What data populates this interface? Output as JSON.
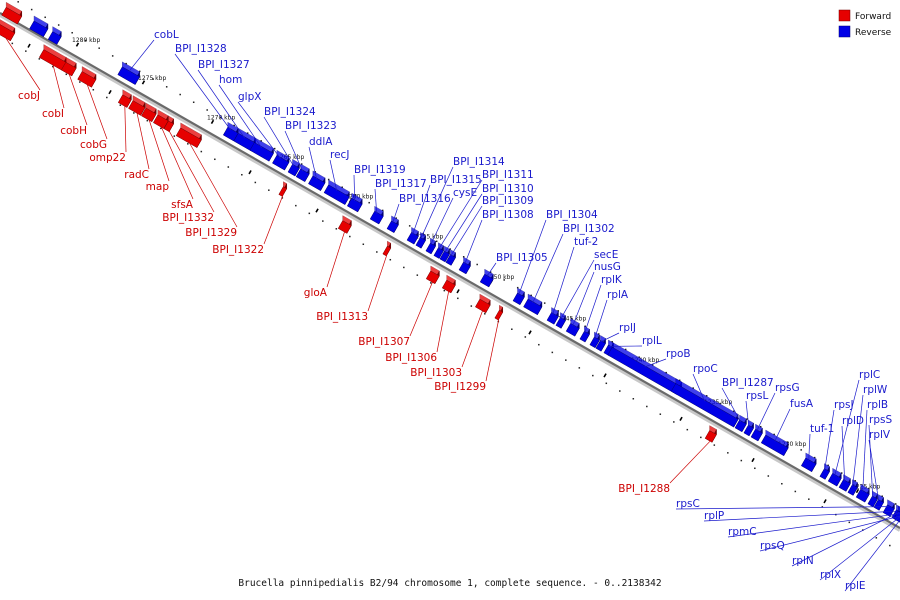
{
  "caption": "Brucella pinnipedialis B2/94 chromosome 1, complete sequence. - 0..2138342",
  "legend": [
    {
      "name": "Forward",
      "color": "#e60000"
    },
    {
      "name": "Reverse",
      "color": "#0000e6"
    }
  ],
  "colors": {
    "forward": "#e60000",
    "reverse": "#0000e6",
    "fwd_label": "#cc0000",
    "rev_label": "#1a1acc"
  },
  "ticks": [
    "1280 kbp",
    "1275 kbp",
    "1270 kbp",
    "1265 kbp",
    "1260 kbp",
    "1255 kbp",
    "1250 kbp",
    "1245 kbp",
    "1240 kbp",
    "1235 kbp",
    "1230 kbp",
    "1225 kbp"
  ],
  "genes": [
    {
      "name": "cobL",
      "strand": "reverse"
    },
    {
      "name": "BPI_I1328",
      "strand": "reverse"
    },
    {
      "name": "BPI_I1327",
      "strand": "reverse"
    },
    {
      "name": "hom",
      "strand": "reverse"
    },
    {
      "name": "glpX",
      "strand": "reverse"
    },
    {
      "name": "BPI_I1324",
      "strand": "reverse"
    },
    {
      "name": "BPI_I1323",
      "strand": "reverse"
    },
    {
      "name": "ddlA",
      "strand": "reverse"
    },
    {
      "name": "recJ",
      "strand": "reverse"
    },
    {
      "name": "BPI_I1319",
      "strand": "reverse"
    },
    {
      "name": "BPI_I1317",
      "strand": "reverse"
    },
    {
      "name": "BPI_I1316",
      "strand": "reverse"
    },
    {
      "name": "BPI_I1315",
      "strand": "reverse"
    },
    {
      "name": "BPI_I1314",
      "strand": "reverse"
    },
    {
      "name": "cysE",
      "strand": "reverse"
    },
    {
      "name": "BPI_I1311",
      "strand": "reverse"
    },
    {
      "name": "BPI_I1310",
      "strand": "reverse"
    },
    {
      "name": "BPI_I1309",
      "strand": "reverse"
    },
    {
      "name": "BPI_I1308",
      "strand": "reverse"
    },
    {
      "name": "BPI_I1305",
      "strand": "reverse"
    },
    {
      "name": "BPI_I1304",
      "strand": "reverse"
    },
    {
      "name": "BPI_I1302",
      "strand": "reverse"
    },
    {
      "name": "tuf-2",
      "strand": "reverse"
    },
    {
      "name": "secE",
      "strand": "reverse"
    },
    {
      "name": "nusG",
      "strand": "reverse"
    },
    {
      "name": "rplK",
      "strand": "reverse"
    },
    {
      "name": "rplA",
      "strand": "reverse"
    },
    {
      "name": "rplJ",
      "strand": "reverse"
    },
    {
      "name": "rplL",
      "strand": "reverse"
    },
    {
      "name": "rpoB",
      "strand": "reverse"
    },
    {
      "name": "rpoC",
      "strand": "reverse"
    },
    {
      "name": "BPI_I1287",
      "strand": "reverse"
    },
    {
      "name": "rpsL",
      "strand": "reverse"
    },
    {
      "name": "rpsG",
      "strand": "reverse"
    },
    {
      "name": "fusA",
      "strand": "reverse"
    },
    {
      "name": "tuf-1",
      "strand": "reverse"
    },
    {
      "name": "rpsJ",
      "strand": "reverse"
    },
    {
      "name": "rplC",
      "strand": "reverse"
    },
    {
      "name": "rplD",
      "strand": "reverse"
    },
    {
      "name": "rplW",
      "strand": "reverse"
    },
    {
      "name": "rplB",
      "strand": "reverse"
    },
    {
      "name": "rpsS",
      "strand": "reverse"
    },
    {
      "name": "rplV",
      "strand": "reverse"
    },
    {
      "name": "rpsC",
      "strand": "reverse"
    },
    {
      "name": "rplP",
      "strand": "reverse"
    },
    {
      "name": "rpmC",
      "strand": "reverse"
    },
    {
      "name": "rpsQ",
      "strand": "reverse"
    },
    {
      "name": "rplN",
      "strand": "reverse"
    },
    {
      "name": "rplX",
      "strand": "reverse"
    },
    {
      "name": "rplE",
      "strand": "reverse"
    },
    {
      "name": "cobJ",
      "strand": "forward"
    },
    {
      "name": "cobI",
      "strand": "forward"
    },
    {
      "name": "cobH",
      "strand": "forward"
    },
    {
      "name": "cobG",
      "strand": "forward"
    },
    {
      "name": "omp22",
      "strand": "forward"
    },
    {
      "name": "radC",
      "strand": "forward"
    },
    {
      "name": "map",
      "strand": "forward"
    },
    {
      "name": "sfsA",
      "strand": "forward"
    },
    {
      "name": "BPI_I1332",
      "strand": "forward"
    },
    {
      "name": "BPI_I1329",
      "strand": "forward"
    },
    {
      "name": "BPI_I1322",
      "strand": "forward"
    },
    {
      "name": "gloA",
      "strand": "forward"
    },
    {
      "name": "BPI_I1313",
      "strand": "forward"
    },
    {
      "name": "BPI_I1307",
      "strand": "forward"
    },
    {
      "name": "BPI_I1306",
      "strand": "forward"
    },
    {
      "name": "BPI_I1303",
      "strand": "forward"
    },
    {
      "name": "BPI_I1299",
      "strand": "forward"
    },
    {
      "name": "BPI_I1288",
      "strand": "forward"
    }
  ]
}
